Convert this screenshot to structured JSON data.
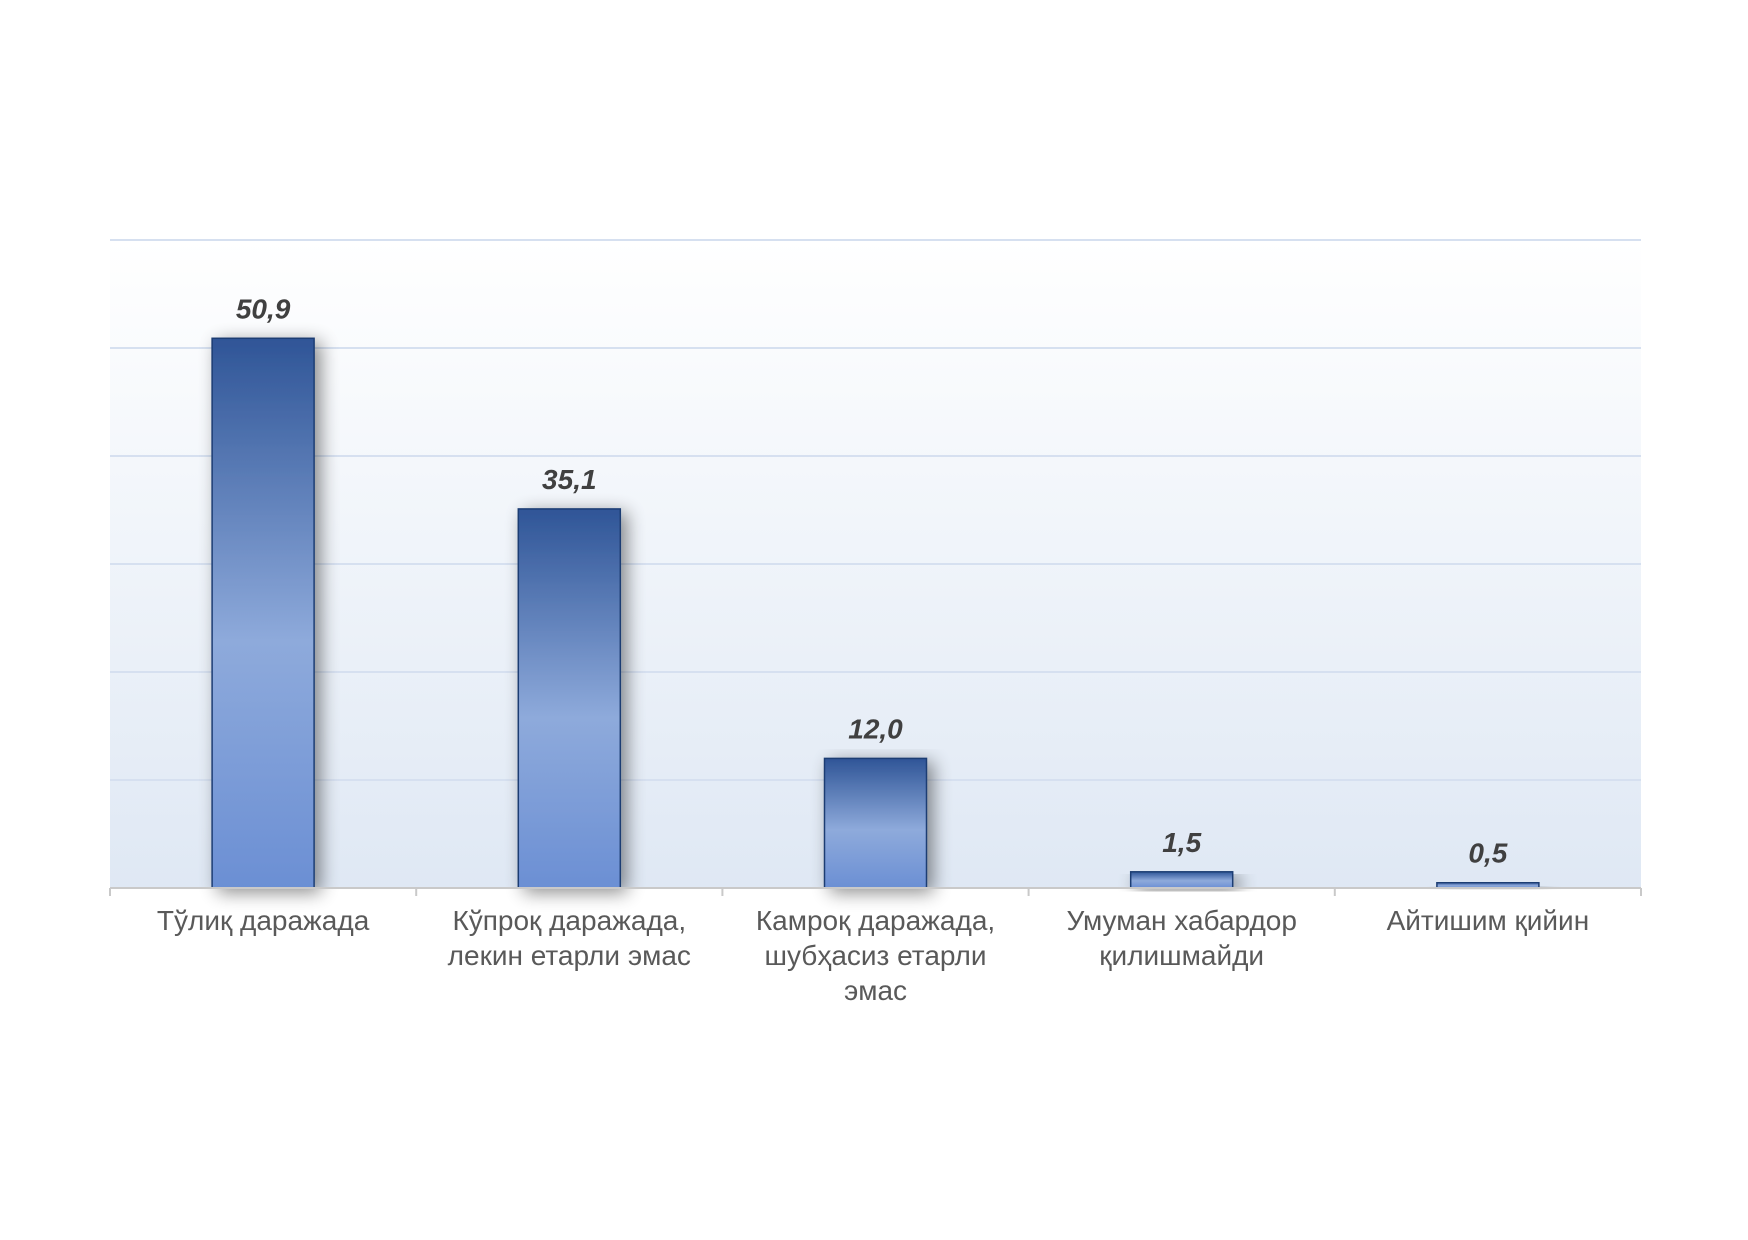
{
  "chart_data": {
    "type": "bar",
    "title": "",
    "xlabel": "",
    "ylabel": "",
    "categories": [
      [
        "Тўлиқ даражада"
      ],
      [
        "Кўпроқ даражада,",
        "лекин етарли  эмас"
      ],
      [
        "Камроқ даражада,",
        "шубҳасиз етарли",
        "эмас"
      ],
      [
        "Умуман хабардор",
        "қилишмайди"
      ],
      [
        "Айтишим қийин"
      ]
    ],
    "values": [
      50.9,
      35.1,
      12.0,
      1.5,
      0.5
    ],
    "value_labels": [
      "50,9",
      "35,1",
      "12,0",
      "1,5",
      "0,5"
    ],
    "ylim": [
      0,
      60
    ],
    "y_gridlines": [
      10,
      20,
      30,
      40,
      50,
      60
    ],
    "grid": true,
    "y_axis_labels_shown": false,
    "legend": "none",
    "colors": {
      "bar_dark": "#2f5597",
      "bar_light": "#8eaadb",
      "bar_outline": "#1f3d73",
      "gridline": "#d6e0f0",
      "axis": "#c9c9c9",
      "plot_bg_top": "#ffffff",
      "plot_bg_bottom": "#dfe8f4"
    }
  }
}
